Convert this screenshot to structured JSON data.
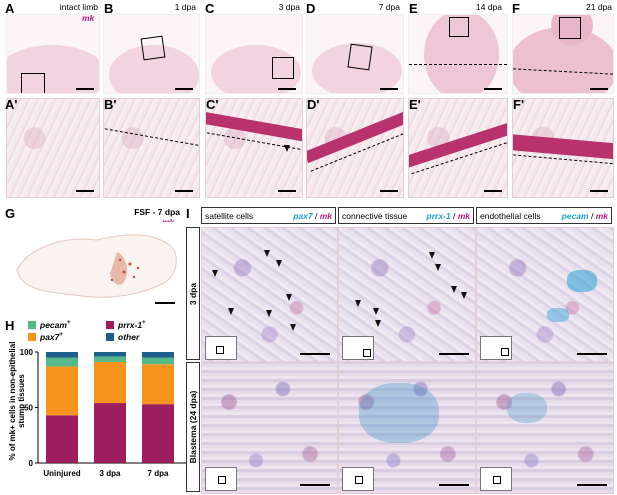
{
  "panels": {
    "A": {
      "letter": "A",
      "caption": "intact limb",
      "probe": "mk"
    },
    "B": {
      "letter": "B",
      "caption": "1 dpa"
    },
    "C": {
      "letter": "C",
      "caption": "3 dpa"
    },
    "D": {
      "letter": "D",
      "caption": "7 dpa"
    },
    "E": {
      "letter": "E",
      "caption": "14 dpa"
    },
    "F": {
      "letter": "F",
      "caption": "21 dpa"
    },
    "A2": {
      "letter": "A'"
    },
    "B2": {
      "letter": "B'"
    },
    "C2": {
      "letter": "C'"
    },
    "D2": {
      "letter": "D'"
    },
    "E2": {
      "letter": "E'"
    },
    "F2": {
      "letter": "F'"
    },
    "G": {
      "letter": "G",
      "caption": "FSF - 7 dpa",
      "probe": "mk"
    },
    "H": {
      "letter": "H"
    },
    "I": {
      "letter": "I"
    }
  },
  "panel_i": {
    "columns": [
      {
        "title": "satellite cells",
        "marker": "pax7",
        "sep": " / ",
        "probe": "mk"
      },
      {
        "title": "connective tissue",
        "marker": "prrx-1",
        "sep": " / ",
        "probe": "mk"
      },
      {
        "title": "endothelial cells",
        "marker": "pecam",
        "sep": " / ",
        "probe": "mk"
      }
    ],
    "rows": [
      "3 dpa",
      "Blastema (24 dpa)"
    ]
  },
  "chart_data": {
    "type": "bar",
    "stacked": true,
    "categories": [
      "Uninjured",
      "3 dpa",
      "7 dpa"
    ],
    "series": [
      {
        "name": "prrx-1+",
        "color": "#9b1f5c",
        "values": [
          43,
          54,
          53
        ]
      },
      {
        "name": "pax7+",
        "color": "#f7941d",
        "values": [
          44,
          37,
          36
        ]
      },
      {
        "name": "pecam+",
        "color": "#56b98a",
        "values": [
          8,
          5,
          6
        ]
      },
      {
        "name": "other",
        "color": "#1f5f8b",
        "values": [
          5,
          4,
          5
        ]
      }
    ],
    "ylabel": "% of mk+ cells in non-epithelial stump tissues",
    "ylim": [
      0,
      100
    ],
    "yticks": [
      "0",
      "50",
      "100"
    ],
    "legend": [
      {
        "label": "pecam",
        "sup": "+",
        "color": "#56b98a"
      },
      {
        "label": "prrx-1",
        "sup": "+",
        "color": "#9b1f5c"
      },
      {
        "label": "pax7",
        "sup": "+",
        "color": "#f7941d"
      },
      {
        "label": "other",
        "sup": "",
        "color": "#1f5f8b"
      }
    ]
  }
}
